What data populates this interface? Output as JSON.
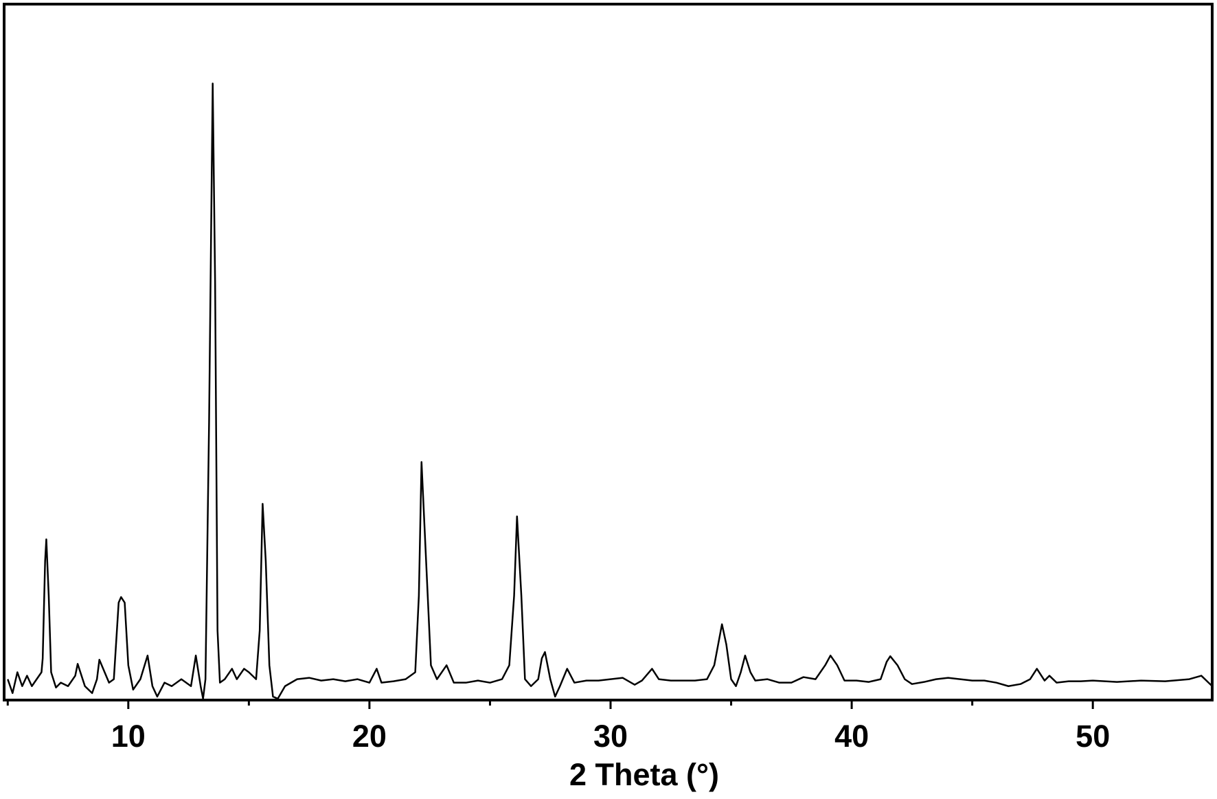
{
  "chart_data": {
    "type": "line",
    "x_label": "2 Theta (°)",
    "xlim": [
      4.85,
      54.95
    ],
    "ylim": [
      0,
      100
    ],
    "xticks": [
      10,
      20,
      30,
      40,
      50
    ],
    "xminor_ticks": [
      5,
      15,
      25,
      35,
      45
    ],
    "series": [
      {
        "color": "#000000",
        "x": [
          5.0,
          5.2,
          5.4,
          5.6,
          5.8,
          6.0,
          6.2,
          6.4,
          6.45,
          6.55,
          6.6,
          6.7,
          6.8,
          7.0,
          7.2,
          7.5,
          7.8,
          7.9,
          8.2,
          8.5,
          8.7,
          8.8,
          9.2,
          9.4,
          9.6,
          9.7,
          9.85,
          10.0,
          10.2,
          10.5,
          10.8,
          11.0,
          11.2,
          11.5,
          11.8,
          12.2,
          12.6,
          12.8,
          13.0,
          13.1,
          13.2,
          13.35,
          13.5,
          13.6,
          13.7,
          13.8,
          14.0,
          14.3,
          14.5,
          14.8,
          15.0,
          15.3,
          15.45,
          15.57,
          15.7,
          15.85,
          16.0,
          16.2,
          16.5,
          17.0,
          17.5,
          18.0,
          18.5,
          19.0,
          19.5,
          20.0,
          20.3,
          20.5,
          21.0,
          21.5,
          21.9,
          22.05,
          22.16,
          22.35,
          22.55,
          22.8,
          23.2,
          23.5,
          24.0,
          24.5,
          25.0,
          25.5,
          25.8,
          26.0,
          26.12,
          26.3,
          26.45,
          26.7,
          27.0,
          27.15,
          27.28,
          27.5,
          27.7,
          27.9,
          28.2,
          28.5,
          29.0,
          29.5,
          30.0,
          30.5,
          31.0,
          31.3,
          31.72,
          32.0,
          32.5,
          33.0,
          33.5,
          34.0,
          34.3,
          34.62,
          34.8,
          35.0,
          35.2,
          35.4,
          35.58,
          35.8,
          36.0,
          36.5,
          37.0,
          37.5,
          38.0,
          38.5,
          38.9,
          39.12,
          39.4,
          39.7,
          40.2,
          40.7,
          41.2,
          41.45,
          41.6,
          41.9,
          42.2,
          42.5,
          43.0,
          43.5,
          44.0,
          44.5,
          45.0,
          45.5,
          46.0,
          46.5,
          47.0,
          47.4,
          47.68,
          48.0,
          48.2,
          48.5,
          49.0,
          49.5,
          50.0,
          51.0,
          52.0,
          53.0,
          54.0,
          54.5,
          54.95
        ],
        "values": [
          3,
          1,
          4,
          2,
          3.5,
          2,
          3,
          4,
          6,
          20,
          23.1,
          15,
          4,
          1.8,
          2.5,
          2,
          3.5,
          5.2,
          2,
          1,
          3,
          5.8,
          2.5,
          3,
          14,
          14.8,
          14,
          5,
          1.5,
          3,
          6.4,
          2,
          0.5,
          2.5,
          2,
          3,
          2,
          6.4,
          2,
          0.2,
          3,
          40,
          88.6,
          60,
          10,
          2.5,
          3,
          4.5,
          3,
          4.5,
          4,
          3,
          10,
          28.2,
          20,
          5,
          0.5,
          0.2,
          2,
          3,
          3.2,
          2.8,
          3,
          2.7,
          3,
          2.5,
          4.5,
          2.5,
          2.7,
          3,
          4,
          15,
          34.2,
          20,
          5,
          3,
          5,
          2.5,
          2.5,
          2.8,
          2.5,
          3,
          5,
          15,
          26.4,
          15,
          3,
          2,
          3,
          6,
          6.9,
          3,
          0.5,
          2,
          4.5,
          2.5,
          2.8,
          2.8,
          3,
          3.2,
          2.2,
          2.8,
          4.5,
          3,
          2.8,
          2.8,
          2.8,
          3,
          5,
          10.9,
          8,
          3,
          2,
          4,
          6.4,
          4,
          2.8,
          3,
          2.5,
          2.5,
          3.3,
          3,
          5,
          6.4,
          5,
          2.8,
          2.8,
          2.6,
          3,
          5.5,
          6.3,
          5,
          3,
          2.3,
          2.6,
          3,
          3.2,
          3,
          2.8,
          2.8,
          2.5,
          2,
          2.3,
          3,
          4.5,
          2.8,
          3.5,
          2.5,
          2.7,
          2.7,
          2.8,
          2.6,
          2.8,
          2.7,
          3,
          3.5,
          2
        ]
      }
    ]
  }
}
